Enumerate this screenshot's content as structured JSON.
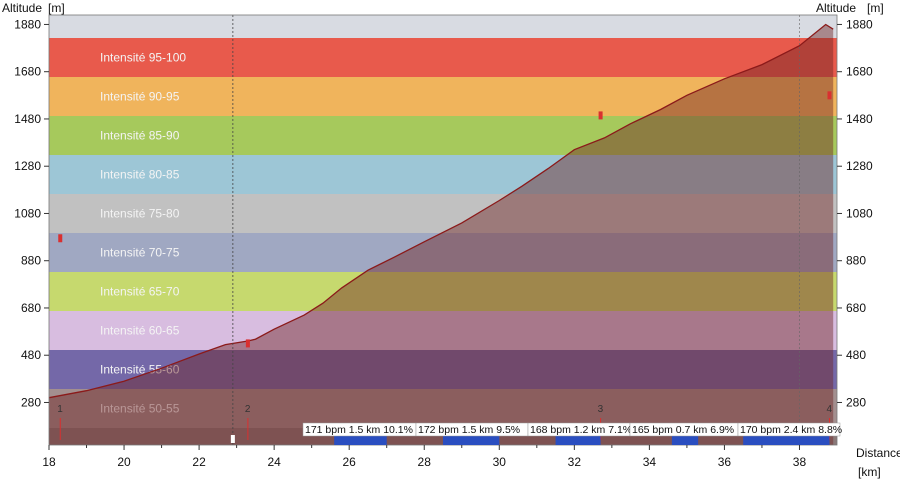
{
  "chart_data": {
    "type": "area",
    "ylabel_left": "Altitude",
    "ylabel_left_unit": "[m]",
    "ylabel_right": "Altitude",
    "ylabel_right_unit": "[m]",
    "xlabel": "Distance",
    "xlabel_unit": "[km]",
    "xlim": [
      18,
      39
    ],
    "ylim": [
      100,
      1920
    ],
    "x_ticks": [
      "18",
      "20",
      "22",
      "24",
      "26",
      "28",
      "30",
      "32",
      "34",
      "36",
      "38"
    ],
    "y_ticks": [
      "280",
      "480",
      "680",
      "880",
      "1080",
      "1280",
      "1480",
      "1680",
      "1880"
    ],
    "bands": [
      {
        "label": "Intensité 95-100",
        "color": "#e85a4c"
      },
      {
        "label": "Intensité 90-95",
        "color": "#f0b45c"
      },
      {
        "label": "Intensité 85-90",
        "color": "#a6c95c"
      },
      {
        "label": "Intensité 80-85",
        "color": "#9dc6d6"
      },
      {
        "label": "Intensité 75-80",
        "color": "#c1c1c1"
      },
      {
        "label": "Intensité 70-75",
        "color": "#a0a8c2"
      },
      {
        "label": "Intensité 65-70",
        "color": "#c6d96e"
      },
      {
        "label": "Intensité 60-65",
        "color": "#d8bde0"
      },
      {
        "label": "Intensité 55-60",
        "color": "#7468a8"
      },
      {
        "label": "Intensité 50-55",
        "color": "#a38f8f"
      }
    ],
    "profile": [
      [
        18.0,
        300
      ],
      [
        19.0,
        330
      ],
      [
        20.0,
        370
      ],
      [
        21.0,
        425
      ],
      [
        22.0,
        485
      ],
      [
        22.7,
        525
      ],
      [
        23.3,
        540
      ],
      [
        23.5,
        548
      ],
      [
        24.0,
        590
      ],
      [
        24.8,
        650
      ],
      [
        25.3,
        700
      ],
      [
        25.8,
        765
      ],
      [
        26.5,
        840
      ],
      [
        27.2,
        895
      ],
      [
        28.0,
        960
      ],
      [
        29.0,
        1040
      ],
      [
        30.0,
        1135
      ],
      [
        30.6,
        1195
      ],
      [
        31.3,
        1270
      ],
      [
        32.0,
        1350
      ],
      [
        32.8,
        1400
      ],
      [
        33.5,
        1460
      ],
      [
        34.3,
        1520
      ],
      [
        35.0,
        1580
      ],
      [
        36.0,
        1650
      ],
      [
        37.0,
        1710
      ],
      [
        38.0,
        1790
      ],
      [
        38.7,
        1880
      ],
      [
        38.9,
        1860
      ]
    ],
    "waypoints": [
      {
        "label": "1",
        "x": 18.3
      },
      {
        "label": "2",
        "x": 23.3
      },
      {
        "label": "3",
        "x": 32.7
      },
      {
        "label": "4",
        "x": 38.8
      }
    ],
    "markers": [
      {
        "x": 18.3,
        "y": 975
      },
      {
        "x": 23.3,
        "y": 530
      },
      {
        "x": 32.7,
        "y": 1495
      },
      {
        "x": 38.8,
        "y": 1580
      }
    ],
    "cursor_x": 22.9,
    "end_x": 38.0,
    "segments": [
      {
        "label": "171 bpm 1.5 km 10.1%",
        "start": 25.6,
        "end": 27.0
      },
      {
        "label": "172 bpm 1.5 km 9.5%",
        "start": 28.5,
        "end": 30.0
      },
      {
        "label": "168 bpm 1.2 km 7.1%",
        "start": 31.5,
        "end": 32.7
      },
      {
        "label": "165 bpm 0.7 km 6.9%",
        "start": 34.6,
        "end": 35.3
      },
      {
        "label": "170 bpm 2.4 km 8.8%",
        "start": 36.5,
        "end": 38.8
      }
    ],
    "colors": {
      "profile_line": "#8b1a1a",
      "segment": "#2a4ec0",
      "axis_text": "#111111",
      "marker": "#d93030"
    }
  }
}
